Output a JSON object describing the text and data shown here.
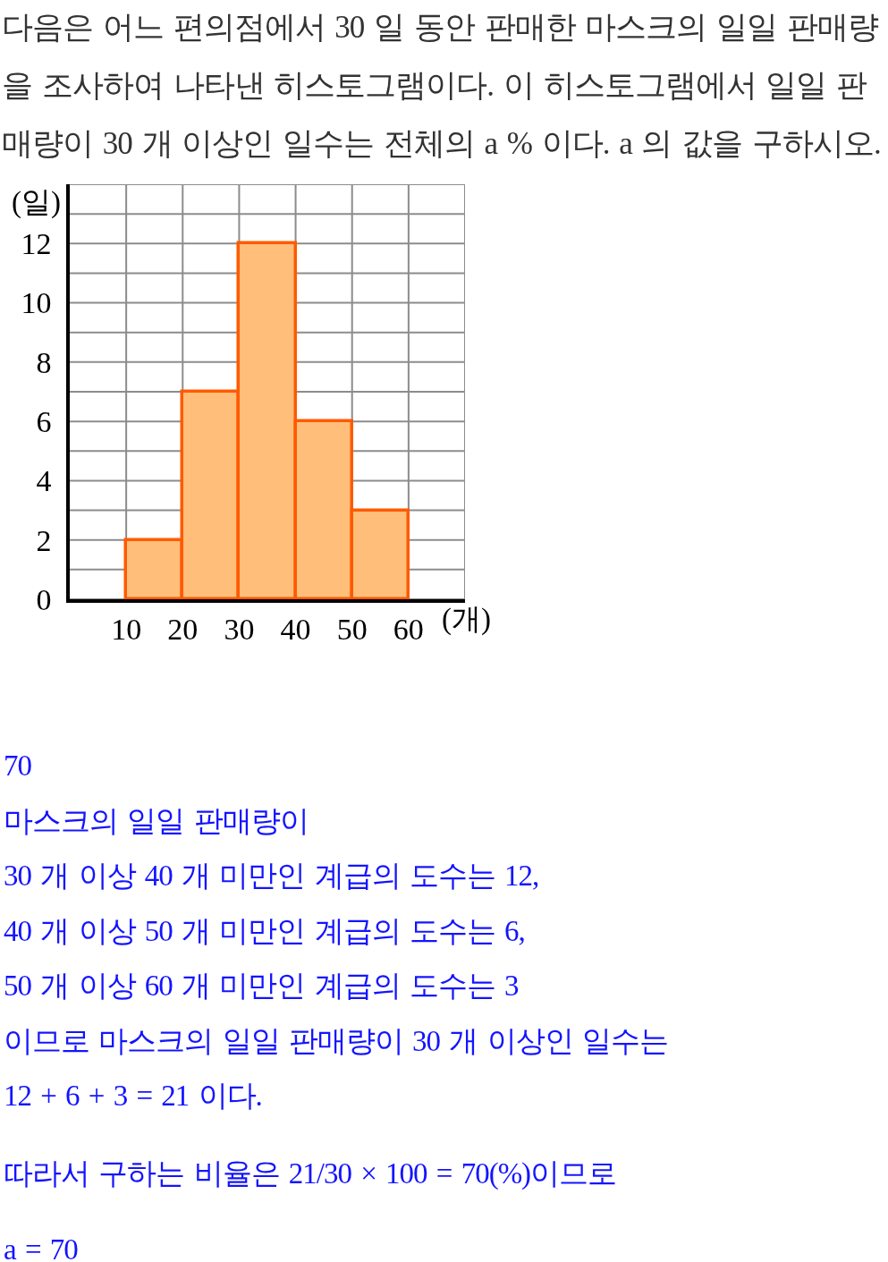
{
  "chart_data": {
    "type": "histogram",
    "title": "다음은 어느 편의점에서 30 일 동안 판매한 마스크의 일일 판매량을 조사하여 나타낸 히스토그램이다. 이 히스토그램에서 일일 판매량이 30 개 이상인 일수는 전체의 a % 이다. a 의 값을 구하시오.",
    "xlabel": "(개)",
    "ylabel": "(일)",
    "bins": [
      10,
      20,
      30,
      40,
      50,
      60
    ],
    "values": [
      2,
      7,
      12,
      6,
      3
    ],
    "color": "#ffbf7a",
    "xlim": [
      0,
      70
    ],
    "xticks": [
      10,
      20,
      30,
      40,
      50,
      60,
      {
        "value": 70,
        "label": null
      }
    ],
    "ylim": [
      0,
      14
    ],
    "yticks": [
      0,
      {
        "value": 1,
        "label": null
      },
      2,
      {
        "value": 3,
        "label": null
      },
      4,
      {
        "value": 5,
        "label": null
      },
      6,
      {
        "value": 7,
        "label": null
      },
      8,
      {
        "value": 9,
        "label": null
      },
      10,
      {
        "value": 11,
        "label": null
      },
      12,
      {
        "value": 13,
        "label": null
      },
      {
        "value": 14,
        "label": null
      }
    ],
    "grid": true,
    "annotations": [
      "70",
      "마스크의 일일 판매량이",
      "30 개 이상 40 개 미만인 계급의 도수는 12,",
      "40 개 이상 50 개 미만인 계급의 도수는 6,",
      "50 개 이상 60 개 미만인 계급의 도수는 3",
      "이므로 마스크의 일일 판매량이 30 개 이상인 일수는",
      "12 + 6 + 3 = 21 이다.",
      "따라서 구하는 비율은 21/30 × 100 = 70(%)이므로",
      "a = 70"
    ]
  }
}
